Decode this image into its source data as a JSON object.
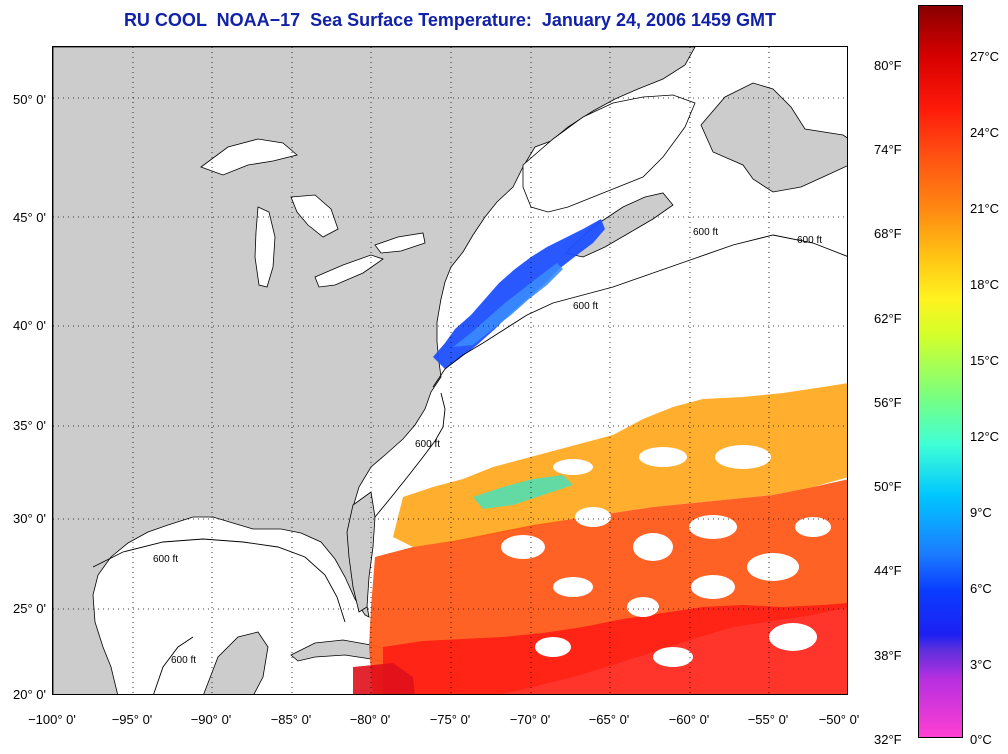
{
  "title": "RU COOL  NOAA−17  Sea Surface Temperature:  January 24, 2006 1459 GMT",
  "map": {
    "lon_range": [
      -100,
      -50
    ],
    "lat_range": [
      20,
      52.5
    ],
    "projection": "mercator",
    "land_color": "#cccccc",
    "water_color": "#ffffff",
    "contour_label": "600 ft",
    "grid": "dotted"
  },
  "axes": {
    "latitude_labels": [
      "50° 0'",
      "45° 0'",
      "40° 0'",
      "35° 0'",
      "30° 0'",
      "25° 0'",
      "20° 0'"
    ],
    "longitude_labels": [
      "−100° 0'",
      "−95° 0'",
      "−90° 0'",
      "−85° 0'",
      "−80° 0'",
      "−75° 0'",
      "−70° 0'",
      "−65° 0'",
      "−60° 0'",
      "−55° 0'",
      "−50° 0'"
    ]
  },
  "colorbar": {
    "fahrenheit_labels": [
      "80°F",
      "74°F",
      "68°F",
      "62°F",
      "56°F",
      "50°F",
      "44°F",
      "38°F",
      "32°F"
    ],
    "celsius_labels": [
      "27°C",
      "24°C",
      "21°C",
      "18°C",
      "15°C",
      "12°C",
      "9°C",
      "6°C",
      "3°C",
      "0°C"
    ],
    "range_c": [
      0,
      29
    ]
  }
}
